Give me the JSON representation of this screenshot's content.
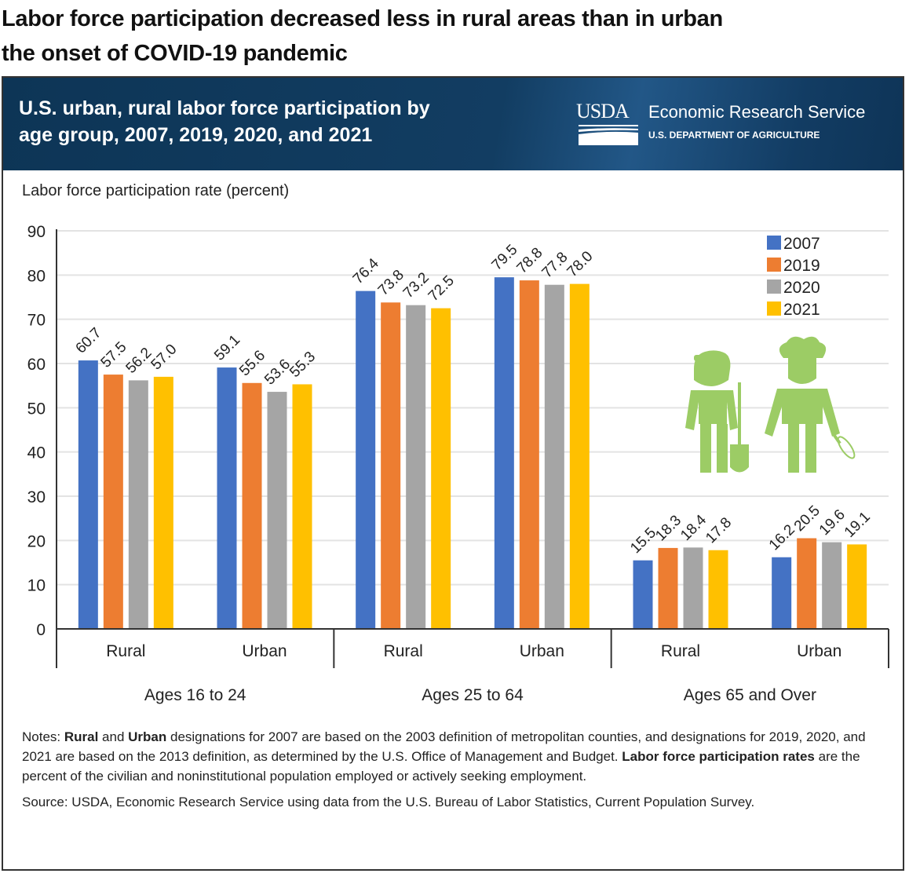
{
  "headline": {
    "line1": "Labor force participation decreased less in rural areas than in urban",
    "line2": "the onset of COVID-19 pandemic"
  },
  "banner": {
    "title_line1": "U.S. urban, rural labor force participation by",
    "title_line2": "age group, 2007, 2019, 2020, and 2021",
    "logo_text": "USDA",
    "agency": "Economic Research Service",
    "department": "U.S. DEPARTMENT OF AGRICULTURE"
  },
  "notes": {
    "prefix": "Notes: ",
    "b1": "Rural",
    "t1": " and ",
    "b2": "Urban",
    "t2": " designations for 2007 are based on the 2003 definition of metropolitan counties, and designations for 2019, 2020, and 2021 are based on the 2013 definition, as determined by the U.S. Office of Management and Budget. ",
    "b3": "Labor force participation rates",
    "t3": " are the percent of the civilian and noninstitutional population employed or actively seeking employment.",
    "source": "Source: USDA, Economic Research Service using data from the U.S. Bureau of Labor Statistics, Current Population Survey."
  },
  "icons": [
    "farmer-with-shovel-icon",
    "chef-with-whisk-icon"
  ],
  "chart_data": {
    "type": "bar",
    "title": "U.S. urban, rural labor force participation by age group, 2007, 2019, 2020, and 2021",
    "ylabel": "Labor force participation rate (percent)",
    "xlabel": "",
    "ylim": [
      0,
      90
    ],
    "yticks": [
      0,
      10,
      20,
      30,
      40,
      50,
      60,
      70,
      80,
      90
    ],
    "grid": true,
    "legend_position": "top-right",
    "groups": [
      "Ages 16 to 24",
      "Ages 25 to 64",
      "Ages 65 and Over"
    ],
    "categories": [
      "Rural",
      "Urban",
      "Rural",
      "Urban",
      "Rural",
      "Urban"
    ],
    "series": [
      {
        "name": "2007",
        "color": "#4472c4",
        "values": [
          60.7,
          59.1,
          76.4,
          79.5,
          15.5,
          16.2
        ]
      },
      {
        "name": "2019",
        "color": "#ed7d31",
        "values": [
          57.5,
          55.6,
          73.8,
          78.8,
          18.3,
          20.5
        ]
      },
      {
        "name": "2020",
        "color": "#a5a5a5",
        "values": [
          56.2,
          53.6,
          73.2,
          77.8,
          18.4,
          19.6
        ]
      },
      {
        "name": "2021",
        "color": "#ffc000",
        "values": [
          57.0,
          55.3,
          72.5,
          78.0,
          17.8,
          19.1
        ]
      }
    ],
    "data_labels": true
  }
}
